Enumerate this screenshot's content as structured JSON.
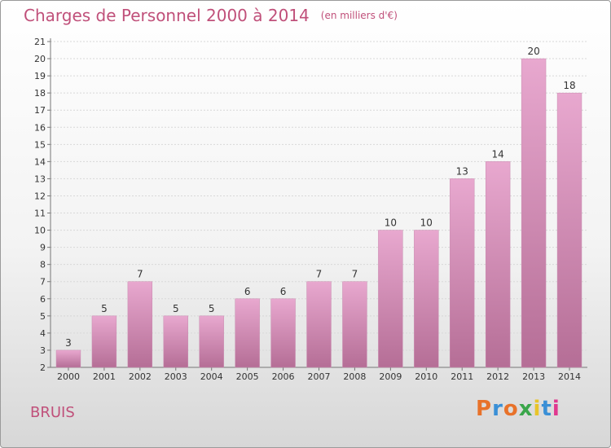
{
  "header": {
    "title": "Charges de Personnel 2000 à 2014",
    "subtitle": "(en milliers d'€)"
  },
  "footer": {
    "commune": "BRUIS",
    "logo_text": "Proxiti"
  },
  "colors": {
    "title": "#c0507a",
    "bar_top": "#e8a8cf",
    "bar_bottom": "#b56e96",
    "logo_letters": [
      "#e8722a",
      "#3a8fd6",
      "#e8722a",
      "#3aa64a",
      "#e8c42a",
      "#3a8fd6",
      "#e0398f"
    ]
  },
  "chart_data": {
    "type": "bar",
    "title": "Charges de Personnel 2000 à 2014",
    "subtitle": "(en milliers d'€)",
    "categories": [
      "2000",
      "2001",
      "2002",
      "2003",
      "2004",
      "2005",
      "2006",
      "2007",
      "2008",
      "2009",
      "2010",
      "2011",
      "2012",
      "2013",
      "2014"
    ],
    "values": [
      3,
      5,
      7,
      5,
      5,
      6,
      6,
      7,
      7,
      10,
      10,
      13,
      14,
      20,
      18
    ],
    "ylim": [
      2,
      21
    ],
    "yticks": [
      2,
      3,
      4,
      5,
      6,
      7,
      8,
      9,
      10,
      11,
      12,
      13,
      14,
      15,
      16,
      17,
      18,
      19,
      20,
      21
    ],
    "grid": true,
    "xlabel": "",
    "ylabel": ""
  }
}
